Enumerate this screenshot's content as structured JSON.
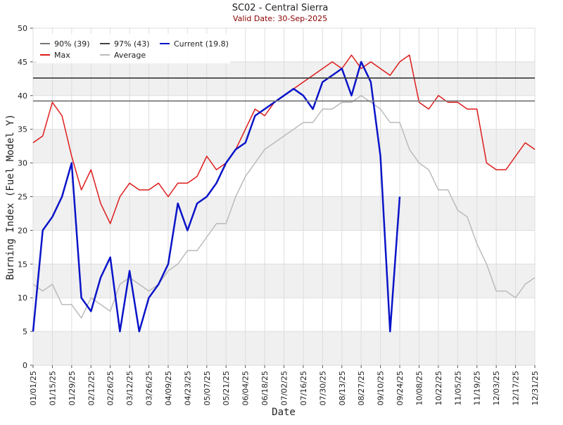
{
  "chart_data": {
    "type": "line",
    "title": "SC02 - Central Sierra",
    "subtitle": "Valid Date: 30-Sep-2025",
    "x_label": "Date",
    "y_label": "Burning Index (Fuel Model Y)",
    "x": [
      "01/01/25",
      "01/08/25",
      "01/15/25",
      "01/22/25",
      "01/29/25",
      "02/05/25",
      "02/12/25",
      "02/19/25",
      "02/26/25",
      "03/05/25",
      "03/12/25",
      "03/19/25",
      "03/26/25",
      "04/02/25",
      "04/09/25",
      "04/16/25",
      "04/23/25",
      "04/30/25",
      "05/07/25",
      "05/14/25",
      "05/21/25",
      "05/28/25",
      "06/04/25",
      "06/11/25",
      "06/18/25",
      "06/25/25",
      "07/02/25",
      "07/09/25",
      "07/16/25",
      "07/23/25",
      "07/30/25",
      "08/06/25",
      "08/13/25",
      "08/20/25",
      "08/27/25",
      "09/03/25",
      "09/10/25",
      "09/17/25",
      "09/24/25",
      "10/01/25",
      "10/08/25",
      "10/15/25",
      "10/22/25",
      "10/29/25",
      "11/05/25",
      "11/12/25",
      "11/19/25",
      "11/26/25",
      "12/03/25",
      "12/10/25",
      "12/17/25",
      "12/24/25",
      "12/31/25"
    ],
    "xlim": [
      "01/01/25",
      "12/31/25"
    ],
    "xticks": [
      "01/01/25",
      "01/15/25",
      "01/29/25",
      "02/12/25",
      "02/26/25",
      "03/12/25",
      "03/26/25",
      "04/09/25",
      "04/23/25",
      "05/07/25",
      "05/21/25",
      "06/04/25",
      "06/18/25",
      "07/02/25",
      "07/16/25",
      "07/30/25",
      "08/13/25",
      "08/27/25",
      "09/10/25",
      "09/24/25",
      "10/08/25",
      "10/22/25",
      "11/05/25",
      "11/19/25",
      "12/03/25",
      "12/17/25",
      "12/31/25"
    ],
    "ylim": [
      0,
      50
    ],
    "yticks": [
      0,
      5,
      10,
      15,
      20,
      25,
      30,
      35,
      40,
      45,
      50
    ],
    "grid": true,
    "reference_lines": [
      {
        "name": "90% (39)",
        "value": 39.2,
        "color": "#777777"
      },
      {
        "name": "97% (43)",
        "value": 42.6,
        "color": "#444444"
      }
    ],
    "series": [
      {
        "name": "Current (19.8)",
        "color": "#0a14c8",
        "width": 2.5,
        "values": [
          5,
          20,
          22,
          25,
          30,
          10,
          8,
          13,
          16,
          5,
          14,
          5,
          10,
          12,
          15,
          24,
          20,
          24,
          25,
          27,
          30,
          32,
          33,
          37,
          38,
          39,
          40,
          41,
          40,
          38,
          42,
          43,
          44,
          40,
          45,
          42,
          31,
          5,
          25,
          null,
          null,
          null,
          null,
          null,
          null,
          null,
          null,
          null,
          null,
          null,
          null,
          null,
          null
        ]
      },
      {
        "name": "Max",
        "color": "#dd1c1c",
        "width": 1.5,
        "values": [
          33,
          34,
          39,
          37,
          31,
          26,
          29,
          24,
          21,
          25,
          27,
          26,
          26,
          27,
          25,
          27,
          27,
          28,
          31,
          29,
          30,
          32,
          35,
          38,
          37,
          39,
          40,
          41,
          42,
          43,
          44,
          45,
          44,
          46,
          44,
          45,
          44,
          43,
          45,
          46,
          39,
          38,
          40,
          39,
          39,
          38,
          38,
          30,
          29,
          29,
          31,
          33,
          32
        ]
      },
      {
        "name": "Average",
        "color": "#bbbbbb",
        "width": 1.5,
        "values": [
          12,
          11,
          12,
          9,
          9,
          7,
          10,
          9,
          8,
          12,
          13,
          12,
          11,
          12,
          14,
          15,
          17,
          17,
          19,
          21,
          21,
          25,
          28,
          30,
          32,
          33,
          34,
          35,
          36,
          36,
          38,
          38,
          39,
          39,
          40,
          39,
          38,
          36,
          36,
          32,
          30,
          29,
          26,
          26,
          23,
          22,
          18,
          15,
          11,
          11,
          10,
          12,
          13
        ]
      }
    ]
  }
}
